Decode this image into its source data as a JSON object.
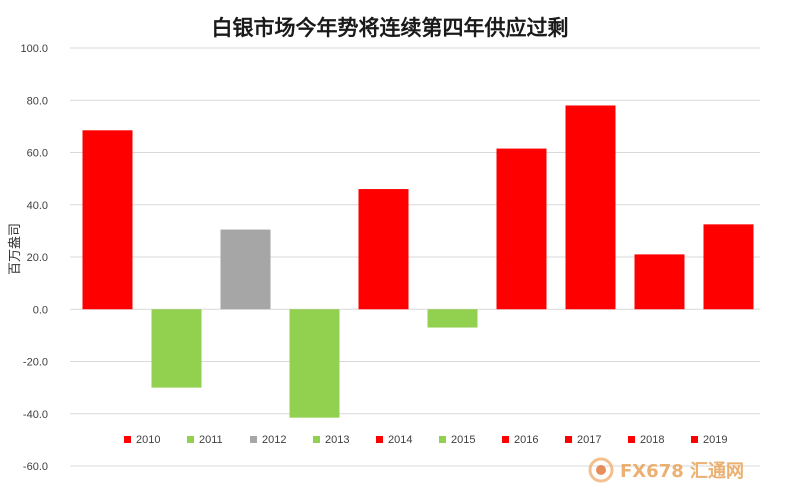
{
  "chart_data": {
    "type": "bar",
    "title": "白银市场今年势将连续第四年供应过剩",
    "ylabel": "百万盎司",
    "xlabel": "",
    "ylim": [
      -60,
      100
    ],
    "yticks": [
      "100.0",
      "80.0",
      "60.0",
      "40.0",
      "20.0",
      "0.0",
      "-20.0",
      "-40.0",
      "-60.0"
    ],
    "grid": true,
    "legend_position": "bottom",
    "categories": [
      "2010",
      "2011",
      "2012",
      "2013",
      "2014",
      "2015",
      "2016",
      "2017",
      "2018",
      "2019"
    ],
    "values": [
      68.5,
      -30.0,
      30.5,
      -41.5,
      46.0,
      -7.0,
      61.5,
      78.0,
      21.0,
      32.5
    ],
    "colors": [
      "#ff0000",
      "#92d050",
      "#a6a6a6",
      "#92d050",
      "#ff0000",
      "#92d050",
      "#ff0000",
      "#ff0000",
      "#ff0000",
      "#ff0000"
    ]
  },
  "watermark": {
    "text": "FX678 汇通网",
    "icon": "fx678-logo-icon"
  }
}
